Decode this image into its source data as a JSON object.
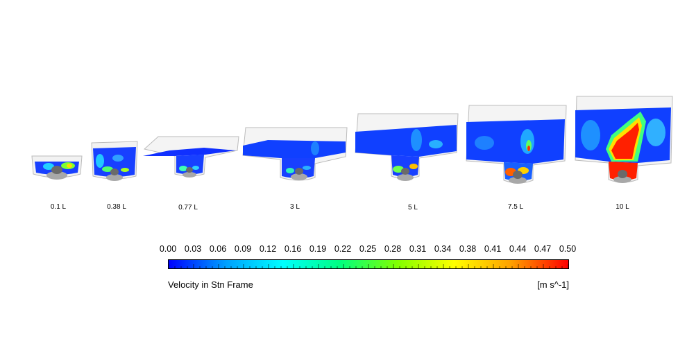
{
  "vessels": [
    {
      "label": "0.1 L"
    },
    {
      "label": "0.38 L"
    },
    {
      "label": "0.77 L"
    },
    {
      "label": "3 L"
    },
    {
      "label": "5 L"
    },
    {
      "label": "7.5 L"
    },
    {
      "label": "10 L"
    }
  ],
  "legend": {
    "ticks": [
      "0.00",
      "0.03",
      "0.06",
      "0.09",
      "0.12",
      "0.16",
      "0.19",
      "0.22",
      "0.25",
      "0.28",
      "0.31",
      "0.34",
      "0.38",
      "0.41",
      "0.44",
      "0.47",
      "0.50"
    ],
    "title": "Velocity in Stn Frame",
    "units": "[m s^-1]",
    "colors": [
      "#0000ff",
      "#00a0ff",
      "#00ffff",
      "#00ff80",
      "#80ff00",
      "#ffff00",
      "#ffa000",
      "#ff0000"
    ]
  }
}
